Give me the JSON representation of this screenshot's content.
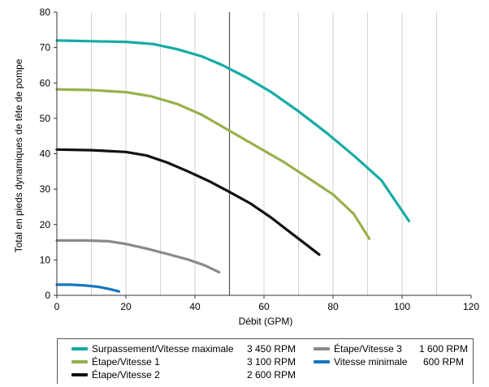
{
  "chart_data": {
    "type": "line",
    "xlabel": "Débit (GPM)",
    "ylabel": "Total en pieds dynamiques de tête de pompe",
    "xlim": [
      0,
      120
    ],
    "ylim": [
      0,
      80
    ],
    "xticks": [
      "0",
      "20",
      "40",
      "60",
      "80",
      "100",
      "120"
    ],
    "yticks": [
      "0",
      "10",
      "20",
      "30",
      "40",
      "50",
      "60",
      "70",
      "80"
    ],
    "reference_line_x": 50,
    "grid": "vertical gridlines only",
    "legend_placement": "bottom",
    "series": [
      {
        "name": "Surpassement/Vitesse maximale",
        "rpm": "3 450 RPM",
        "color": "#14aba6",
        "x": [
          0,
          10,
          20,
          28,
          35,
          42,
          48,
          55,
          62,
          70,
          78,
          86,
          94,
          102
        ],
        "y": [
          72,
          71.8,
          71.6,
          71,
          69.5,
          67.5,
          65,
          61.5,
          57.5,
          52,
          46,
          39.5,
          32.5,
          21
        ]
      },
      {
        "name": "Étape/Vitesse 1",
        "rpm": "3 100 RPM",
        "color": "#98b04b",
        "x": [
          0,
          10,
          20,
          27,
          35,
          42,
          50,
          58,
          66,
          73,
          80,
          86,
          90.5
        ],
        "y": [
          58.2,
          58,
          57.4,
          56.3,
          54,
          51,
          46.5,
          42,
          37.5,
          33,
          28.5,
          23,
          16
        ]
      },
      {
        "name": "Étape/Vitesse 2",
        "rpm": "2 600 RPM",
        "color": "#111111",
        "x": [
          0,
          10,
          20,
          26,
          32,
          38,
          44,
          50,
          56,
          62,
          68,
          72,
          76
        ],
        "y": [
          41.2,
          41,
          40.5,
          39.5,
          37.5,
          35,
          32.3,
          29.2,
          26,
          22,
          17.5,
          14.5,
          11.5
        ]
      },
      {
        "name": "Étape/Vitesse 3",
        "rpm": "1 600 RPM",
        "color": "#8a8a8a",
        "x": [
          0,
          8,
          15,
          20,
          26,
          32,
          38,
          43,
          47
        ],
        "y": [
          15.5,
          15.5,
          15.3,
          14.5,
          13.2,
          11.7,
          10.1,
          8.4,
          6.5
        ]
      },
      {
        "name": "Vitesse minimale",
        "rpm": "600 RPM",
        "color": "#1677be",
        "x": [
          0,
          4,
          8,
          12,
          15,
          18
        ],
        "y": [
          3,
          3,
          2.8,
          2.4,
          1.8,
          1.1
        ]
      }
    ]
  }
}
